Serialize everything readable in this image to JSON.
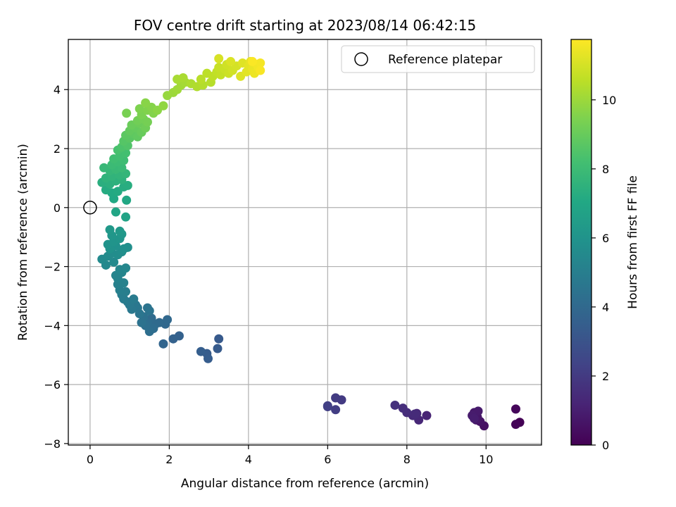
{
  "chart_data": {
    "type": "scatter",
    "title": "FOV centre drift starting at 2023/08/14 06:42:15",
    "xlabel": "Angular distance from reference (arcmin)",
    "ylabel": "Rotation from reference (arcmin)",
    "xlim": [
      -0.55,
      11.4
    ],
    "ylim": [
      -8.05,
      5.7
    ],
    "xticks": [
      0,
      2,
      4,
      6,
      8,
      10
    ],
    "yticks": [
      -8,
      -6,
      -4,
      -2,
      0,
      2,
      4
    ],
    "grid": true,
    "legend": {
      "position": "top-right",
      "entries": [
        "Reference platepar"
      ]
    },
    "reference_point": {
      "x": 0,
      "y": 0,
      "label": "Reference platepar",
      "marker": "open-circle"
    },
    "colorbar": {
      "label": "Hours from first FF file",
      "range": [
        0,
        11.75
      ],
      "ticks": [
        0,
        2,
        4,
        6,
        8,
        10
      ],
      "colormap": "viridis"
    },
    "series": [
      {
        "color_by": "hours",
        "points": [
          {
            "x": 10.85,
            "y": -7.28,
            "c": 0.05
          },
          {
            "x": 10.75,
            "y": -7.35,
            "c": 0.1
          },
          {
            "x": 10.75,
            "y": -6.83,
            "c": 0.2
          },
          {
            "x": 9.95,
            "y": -7.4,
            "c": 0.5
          },
          {
            "x": 9.85,
            "y": -7.25,
            "c": 0.6
          },
          {
            "x": 9.78,
            "y": -7.1,
            "c": 0.7
          },
          {
            "x": 9.75,
            "y": -7.2,
            "c": 0.75
          },
          {
            "x": 9.7,
            "y": -6.95,
            "c": 0.8
          },
          {
            "x": 9.8,
            "y": -6.9,
            "c": 0.85
          },
          {
            "x": 9.65,
            "y": -7.05,
            "c": 0.9
          },
          {
            "x": 9.7,
            "y": -7.15,
            "c": 0.95
          },
          {
            "x": 8.5,
            "y": -7.05,
            "c": 1.2
          },
          {
            "x": 8.3,
            "y": -7.2,
            "c": 1.3
          },
          {
            "x": 8.25,
            "y": -6.98,
            "c": 1.35
          },
          {
            "x": 8.15,
            "y": -7.05,
            "c": 1.4
          },
          {
            "x": 8.0,
            "y": -6.95,
            "c": 1.5
          },
          {
            "x": 7.9,
            "y": -6.8,
            "c": 1.55
          },
          {
            "x": 7.7,
            "y": -6.7,
            "c": 1.6
          },
          {
            "x": 8.2,
            "y": -7.0,
            "c": 1.45
          },
          {
            "x": 6.35,
            "y": -6.52,
            "c": 2.0
          },
          {
            "x": 6.2,
            "y": -6.45,
            "c": 2.05
          },
          {
            "x": 6.2,
            "y": -6.85,
            "c": 2.1
          },
          {
            "x": 6.0,
            "y": -6.75,
            "c": 2.15
          },
          {
            "x": 6.0,
            "y": -6.72,
            "c": 2.2
          },
          {
            "x": 3.25,
            "y": -4.45,
            "c": 3.3
          },
          {
            "x": 3.22,
            "y": -4.78,
            "c": 3.35
          },
          {
            "x": 2.95,
            "y": -4.95,
            "c": 3.4
          },
          {
            "x": 2.98,
            "y": -5.12,
            "c": 3.45
          },
          {
            "x": 2.8,
            "y": -4.88,
            "c": 3.5
          },
          {
            "x": 2.25,
            "y": -4.35,
            "c": 3.6
          },
          {
            "x": 2.1,
            "y": -4.45,
            "c": 3.65
          },
          {
            "x": 1.85,
            "y": -4.62,
            "c": 3.8
          },
          {
            "x": 1.9,
            "y": -3.95,
            "c": 3.9
          },
          {
            "x": 1.95,
            "y": -3.8,
            "c": 3.95
          },
          {
            "x": 1.75,
            "y": -3.9,
            "c": 4.0
          },
          {
            "x": 1.65,
            "y": -3.95,
            "c": 4.05
          },
          {
            "x": 1.55,
            "y": -3.75,
            "c": 4.1
          },
          {
            "x": 1.6,
            "y": -4.1,
            "c": 4.15
          },
          {
            "x": 1.45,
            "y": -3.9,
            "c": 4.2
          },
          {
            "x": 1.5,
            "y": -4.2,
            "c": 4.25
          },
          {
            "x": 1.4,
            "y": -4.0,
            "c": 4.3
          },
          {
            "x": 1.35,
            "y": -3.7,
            "c": 4.35
          },
          {
            "x": 1.3,
            "y": -3.9,
            "c": 4.4
          },
          {
            "x": 1.5,
            "y": -3.5,
            "c": 4.45
          },
          {
            "x": 1.45,
            "y": -3.4,
            "c": 4.5
          },
          {
            "x": 1.25,
            "y": -3.6,
            "c": 4.55
          },
          {
            "x": 1.2,
            "y": -3.4,
            "c": 4.6
          },
          {
            "x": 1.15,
            "y": -3.3,
            "c": 4.65
          },
          {
            "x": 1.05,
            "y": -3.45,
            "c": 4.7
          },
          {
            "x": 1.0,
            "y": -3.3,
            "c": 4.75
          },
          {
            "x": 0.95,
            "y": -3.2,
            "c": 4.8
          },
          {
            "x": 1.1,
            "y": -3.1,
            "c": 4.85
          },
          {
            "x": 0.85,
            "y": -3.1,
            "c": 4.9
          },
          {
            "x": 0.8,
            "y": -2.95,
            "c": 4.95
          },
          {
            "x": 0.9,
            "y": -2.85,
            "c": 5.0
          },
          {
            "x": 0.75,
            "y": -2.8,
            "c": 5.05
          },
          {
            "x": 0.7,
            "y": -2.6,
            "c": 5.1
          },
          {
            "x": 0.85,
            "y": -2.55,
            "c": 5.15
          },
          {
            "x": 0.7,
            "y": -2.4,
            "c": 5.2
          },
          {
            "x": 0.65,
            "y": -2.3,
            "c": 5.25
          },
          {
            "x": 0.8,
            "y": -2.2,
            "c": 5.3
          },
          {
            "x": 0.75,
            "y": -2.1,
            "c": 5.35
          },
          {
            "x": 0.9,
            "y": -2.05,
            "c": 5.4
          },
          {
            "x": 0.4,
            "y": -1.95,
            "c": 5.45
          },
          {
            "x": 0.6,
            "y": -1.85,
            "c": 5.5
          },
          {
            "x": 0.3,
            "y": -1.75,
            "c": 5.55
          },
          {
            "x": 0.45,
            "y": -1.65,
            "c": 5.6
          },
          {
            "x": 0.55,
            "y": -1.55,
            "c": 5.65
          },
          {
            "x": 0.7,
            "y": -1.6,
            "c": 5.7
          },
          {
            "x": 0.8,
            "y": -1.5,
            "c": 5.75
          },
          {
            "x": 0.95,
            "y": -1.35,
            "c": 5.8
          },
          {
            "x": 0.85,
            "y": -1.4,
            "c": 5.85
          },
          {
            "x": 0.65,
            "y": -1.3,
            "c": 5.9
          },
          {
            "x": 0.5,
            "y": -1.4,
            "c": 5.95
          },
          {
            "x": 0.45,
            "y": -1.25,
            "c": 6.0
          },
          {
            "x": 0.6,
            "y": -1.15,
            "c": 6.05
          },
          {
            "x": 0.75,
            "y": -1.05,
            "c": 6.1
          },
          {
            "x": 0.55,
            "y": -0.95,
            "c": 6.15
          },
          {
            "x": 0.8,
            "y": -0.9,
            "c": 6.2
          },
          {
            "x": 0.5,
            "y": -0.75,
            "c": 6.25
          },
          {
            "x": 0.75,
            "y": -0.8,
            "c": 6.3
          },
          {
            "x": 0.9,
            "y": -0.32,
            "c": 6.8
          },
          {
            "x": 0.65,
            "y": -0.15,
            "c": 6.9
          },
          {
            "x": 0.92,
            "y": 0.25,
            "c": 7.0
          },
          {
            "x": 0.6,
            "y": 0.3,
            "c": 7.05
          },
          {
            "x": 0.55,
            "y": 0.5,
            "c": 7.1
          },
          {
            "x": 0.7,
            "y": 0.55,
            "c": 7.15
          },
          {
            "x": 0.4,
            "y": 0.6,
            "c": 7.2
          },
          {
            "x": 0.85,
            "y": 0.7,
            "c": 7.25
          },
          {
            "x": 0.95,
            "y": 0.75,
            "c": 7.3
          },
          {
            "x": 0.3,
            "y": 0.85,
            "c": 7.35
          },
          {
            "x": 0.5,
            "y": 0.8,
            "c": 7.4
          },
          {
            "x": 0.65,
            "y": 0.9,
            "c": 7.45
          },
          {
            "x": 0.8,
            "y": 0.95,
            "c": 7.5
          },
          {
            "x": 0.4,
            "y": 1.0,
            "c": 7.55
          },
          {
            "x": 0.55,
            "y": 1.05,
            "c": 7.6
          },
          {
            "x": 0.75,
            "y": 1.1,
            "c": 7.65
          },
          {
            "x": 0.9,
            "y": 1.15,
            "c": 7.7
          },
          {
            "x": 0.5,
            "y": 1.25,
            "c": 7.75
          },
          {
            "x": 0.35,
            "y": 1.35,
            "c": 7.8
          },
          {
            "x": 0.65,
            "y": 1.3,
            "c": 7.85
          },
          {
            "x": 0.8,
            "y": 1.35,
            "c": 7.9
          },
          {
            "x": 0.55,
            "y": 1.45,
            "c": 7.95
          },
          {
            "x": 0.7,
            "y": 1.55,
            "c": 8.0
          },
          {
            "x": 0.85,
            "y": 1.6,
            "c": 8.05
          },
          {
            "x": 0.6,
            "y": 1.65,
            "c": 8.1
          },
          {
            "x": 0.75,
            "y": 1.75,
            "c": 8.15
          },
          {
            "x": 0.9,
            "y": 1.85,
            "c": 8.2
          },
          {
            "x": 0.7,
            "y": 1.95,
            "c": 8.3
          },
          {
            "x": 0.8,
            "y": 2.05,
            "c": 8.4
          },
          {
            "x": 0.95,
            "y": 2.1,
            "c": 8.5
          },
          {
            "x": 0.85,
            "y": 2.25,
            "c": 8.6
          },
          {
            "x": 1.0,
            "y": 2.35,
            "c": 8.7
          },
          {
            "x": 0.9,
            "y": 2.45,
            "c": 8.75
          },
          {
            "x": 1.1,
            "y": 2.5,
            "c": 8.8
          },
          {
            "x": 1.2,
            "y": 2.4,
            "c": 8.85
          },
          {
            "x": 1.0,
            "y": 2.6,
            "c": 8.9
          },
          {
            "x": 1.15,
            "y": 2.7,
            "c": 8.95
          },
          {
            "x": 1.3,
            "y": 2.55,
            "c": 9.0
          },
          {
            "x": 1.05,
            "y": 2.8,
            "c": 9.05
          },
          {
            "x": 1.25,
            "y": 2.85,
            "c": 9.1
          },
          {
            "x": 1.4,
            "y": 2.7,
            "c": 9.15
          },
          {
            "x": 1.2,
            "y": 2.95,
            "c": 9.2
          },
          {
            "x": 1.35,
            "y": 3.0,
            "c": 9.25
          },
          {
            "x": 1.45,
            "y": 2.9,
            "c": 9.3
          },
          {
            "x": 0.92,
            "y": 3.2,
            "c": 9.35
          },
          {
            "x": 1.3,
            "y": 3.15,
            "c": 9.4
          },
          {
            "x": 1.25,
            "y": 3.35,
            "c": 9.45
          },
          {
            "x": 1.45,
            "y": 3.3,
            "c": 9.5
          },
          {
            "x": 1.6,
            "y": 3.2,
            "c": 9.55
          },
          {
            "x": 1.55,
            "y": 3.4,
            "c": 9.6
          },
          {
            "x": 1.4,
            "y": 3.55,
            "c": 9.65
          },
          {
            "x": 1.7,
            "y": 3.3,
            "c": 9.7
          },
          {
            "x": 1.85,
            "y": 3.45,
            "c": 9.8
          },
          {
            "x": 1.95,
            "y": 3.8,
            "c": 9.9
          },
          {
            "x": 2.1,
            "y": 3.9,
            "c": 10.0
          },
          {
            "x": 2.2,
            "y": 4.0,
            "c": 10.05
          },
          {
            "x": 2.3,
            "y": 4.15,
            "c": 10.1
          },
          {
            "x": 2.4,
            "y": 4.25,
            "c": 10.15
          },
          {
            "x": 2.2,
            "y": 4.35,
            "c": 10.2
          },
          {
            "x": 2.35,
            "y": 4.4,
            "c": 10.25
          },
          {
            "x": 2.55,
            "y": 4.2,
            "c": 10.3
          },
          {
            "x": 2.7,
            "y": 4.1,
            "c": 10.35
          },
          {
            "x": 2.85,
            "y": 4.15,
            "c": 10.4
          },
          {
            "x": 3.05,
            "y": 4.25,
            "c": 10.45
          },
          {
            "x": 2.8,
            "y": 4.35,
            "c": 10.5
          },
          {
            "x": 2.95,
            "y": 4.55,
            "c": 10.55
          },
          {
            "x": 3.1,
            "y": 4.45,
            "c": 10.6
          },
          {
            "x": 3.2,
            "y": 4.6,
            "c": 10.65
          },
          {
            "x": 3.3,
            "y": 4.5,
            "c": 10.7
          },
          {
            "x": 3.25,
            "y": 4.75,
            "c": 10.75
          },
          {
            "x": 3.4,
            "y": 4.7,
            "c": 10.8
          },
          {
            "x": 3.5,
            "y": 4.55,
            "c": 10.85
          },
          {
            "x": 3.45,
            "y": 4.85,
            "c": 10.9
          },
          {
            "x": 3.6,
            "y": 4.65,
            "c": 10.95
          },
          {
            "x": 3.7,
            "y": 4.8,
            "c": 11.0
          },
          {
            "x": 3.25,
            "y": 5.05,
            "c": 11.05
          },
          {
            "x": 3.55,
            "y": 4.95,
            "c": 11.1
          },
          {
            "x": 3.8,
            "y": 4.45,
            "c": 11.15
          },
          {
            "x": 3.85,
            "y": 4.9,
            "c": 11.2
          },
          {
            "x": 3.95,
            "y": 4.6,
            "c": 11.25
          },
          {
            "x": 4.0,
            "y": 4.8,
            "c": 11.3
          },
          {
            "x": 4.05,
            "y": 4.95,
            "c": 11.35
          },
          {
            "x": 4.1,
            "y": 4.7,
            "c": 11.4
          },
          {
            "x": 4.15,
            "y": 4.55,
            "c": 11.45
          },
          {
            "x": 4.2,
            "y": 4.85,
            "c": 11.5
          },
          {
            "x": 4.25,
            "y": 4.75,
            "c": 11.55
          },
          {
            "x": 4.3,
            "y": 4.9,
            "c": 11.6
          },
          {
            "x": 4.3,
            "y": 4.65,
            "c": 11.65
          },
          {
            "x": 4.1,
            "y": 4.95,
            "c": 11.7
          }
        ]
      }
    ]
  }
}
